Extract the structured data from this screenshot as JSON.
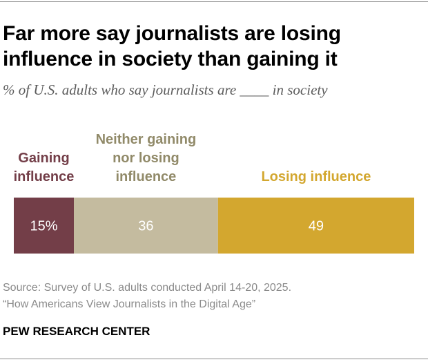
{
  "title": "Far more say journalists are losing influence in society than gaining it",
  "subtitle": "% of U.S. adults who say journalists are ____ in society",
  "colors": {
    "gaining": "#733e48",
    "neither": "#c4bb9f",
    "losing": "#d3a72f",
    "neither_label": "#918a69"
  },
  "chart_data": {
    "type": "bar",
    "orientation": "horizontal-stacked",
    "categories": [
      "Gaining influence",
      "Neither gaining nor losing influence",
      "Losing influence"
    ],
    "series": [
      {
        "name": "Gaining influence",
        "label_lines": [
          "Gaining",
          "influence"
        ],
        "value": 15,
        "display": "15%",
        "color": "#733e48",
        "label_color": "#733e48"
      },
      {
        "name": "Neither gaining nor losing influence",
        "label_lines": [
          "Neither gaining",
          "nor losing",
          "influence"
        ],
        "value": 36,
        "display": "36",
        "color": "#c4bb9f",
        "label_color": "#918a69"
      },
      {
        "name": "Losing influence",
        "label_lines": [
          "Losing influence"
        ],
        "value": 49,
        "display": "49",
        "color": "#d3a72f",
        "label_color": "#d3a72f"
      }
    ],
    "total": 100
  },
  "source": {
    "line1": "Source: Survey of U.S. adults conducted April 14-20, 2025.",
    "line2": "“How Americans View Journalists in the Digital Age”"
  },
  "brand": "PEW RESEARCH CENTER"
}
